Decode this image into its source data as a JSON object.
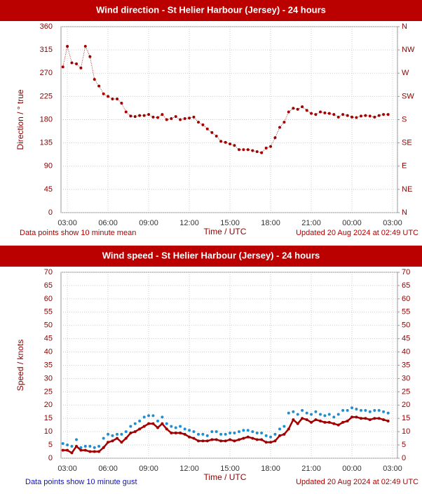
{
  "chart_data": [
    {
      "type": "line",
      "title": "Wind direction - St Helier Harbour (Jersey) - 24 hours",
      "y_label": "Direction / ° true",
      "x_label": "Time / UTC",
      "note": "Data points show 10 minute mean",
      "updated": "Updated 20 Aug 2024 at 02:49 UTC",
      "x": [
        2.67,
        3,
        3.33,
        3.67,
        4,
        4.33,
        4.67,
        5,
        5.33,
        5.67,
        6,
        6.33,
        6.67,
        7,
        7.33,
        7.67,
        8,
        8.33,
        8.67,
        9,
        9.33,
        9.67,
        10,
        10.33,
        10.67,
        11,
        11.33,
        11.67,
        12,
        12.33,
        12.67,
        13,
        13.33,
        13.67,
        14,
        14.33,
        14.67,
        15,
        15.33,
        15.67,
        16,
        16.33,
        16.67,
        17,
        17.33,
        17.67,
        18,
        18.33,
        18.67,
        19,
        19.33,
        19.67,
        20,
        20.33,
        20.67,
        21,
        21.33,
        21.67,
        22,
        22.33,
        22.67,
        23,
        23.33,
        23.67,
        24,
        24.33,
        24.67,
        25,
        25.33,
        25.67,
        26,
        26.33,
        26.67
      ],
      "values": [
        282,
        322,
        290,
        288,
        280,
        322,
        302,
        258,
        245,
        230,
        225,
        220,
        220,
        212,
        195,
        187,
        186,
        188,
        188,
        190,
        185,
        184,
        190,
        180,
        182,
        186,
        180,
        182,
        183,
        185,
        175,
        170,
        162,
        155,
        148,
        138,
        136,
        133,
        130,
        122,
        122,
        122,
        120,
        118,
        116,
        125,
        128,
        145,
        165,
        175,
        195,
        202,
        200,
        205,
        198,
        192,
        190,
        195,
        193,
        192,
        190,
        185,
        190,
        188,
        185,
        184,
        187,
        188,
        187,
        185,
        188,
        190,
        190
      ],
      "color": "#a00000",
      "line_style": "dotted",
      "xlim": [
        2.53,
        27.36
      ],
      "xticks": [
        {
          "value": 3,
          "label": "03:00"
        },
        {
          "value": 6,
          "label": "06:00"
        },
        {
          "value": 9,
          "label": "09:00"
        },
        {
          "value": 12,
          "label": "12:00"
        },
        {
          "value": 15,
          "label": "15:00"
        },
        {
          "value": 18,
          "label": "18:00"
        },
        {
          "value": 21,
          "label": "21:00"
        },
        {
          "value": 24,
          "label": "00:00"
        },
        {
          "value": 27,
          "label": "03:00"
        }
      ],
      "ylim": [
        0,
        360
      ],
      "yticks": [
        0,
        45,
        90,
        135,
        180,
        225,
        270,
        315,
        360
      ],
      "y2lim": [
        0,
        360
      ],
      "y2ticks": [
        {
          "value": 0,
          "label": "N"
        },
        {
          "value": 45,
          "label": "NE"
        },
        {
          "value": 90,
          "label": "E"
        },
        {
          "value": 135,
          "label": "SE"
        },
        {
          "value": 180,
          "label": "S"
        },
        {
          "value": 225,
          "label": "SW"
        },
        {
          "value": 270,
          "label": "W"
        },
        {
          "value": 315,
          "label": "NW"
        },
        {
          "value": 360,
          "label": "N"
        }
      ],
      "grid": true
    },
    {
      "type": "line",
      "title": "Wind speed - St Helier Harbour (Jersey) - 24 hours",
      "y_label": "Speed / knots",
      "x_label": "Time / UTC",
      "note": "Data points show 10 minute gust",
      "updated": "Updated 20 Aug 2024 at 02:49 UTC",
      "x": [
        2.67,
        3,
        3.33,
        3.67,
        4,
        4.33,
        4.67,
        5,
        5.33,
        5.67,
        6,
        6.33,
        6.67,
        7,
        7.33,
        7.67,
        8,
        8.33,
        8.67,
        9,
        9.33,
        9.67,
        10,
        10.33,
        10.67,
        11,
        11.33,
        11.67,
        12,
        12.33,
        12.67,
        13,
        13.33,
        13.67,
        14,
        14.33,
        14.67,
        15,
        15.33,
        15.67,
        16,
        16.33,
        16.67,
        17,
        17.33,
        17.67,
        18,
        18.33,
        18.67,
        19,
        19.33,
        19.67,
        20,
        20.33,
        20.67,
        21,
        21.33,
        21.67,
        22,
        22.33,
        22.67,
        23,
        23.33,
        23.67,
        24,
        24.33,
        24.67,
        25,
        25.33,
        25.67,
        26,
        26.33,
        26.67
      ],
      "series": [
        {
          "color": "#1e8fd0",
          "line_style": "none",
          "values": [
            5.5,
            5,
            4.5,
            7,
            4,
            4.5,
            4.5,
            4,
            4.5,
            7.5,
            9,
            8.5,
            9,
            9,
            10,
            12,
            13,
            14,
            15.5,
            16,
            16,
            14,
            15.5,
            13,
            12,
            11.5,
            12,
            11,
            10.5,
            10,
            9,
            9,
            8.5,
            10,
            10,
            9,
            9,
            9.5,
            9.5,
            10,
            10.5,
            10.5,
            10,
            9.5,
            9.5,
            8.5,
            8,
            9,
            11,
            12,
            17,
            17.5,
            16.5,
            18,
            17,
            16.5,
            17.5,
            16.5,
            16,
            16.5,
            15.5,
            16.5,
            18,
            18,
            19,
            18.5,
            18,
            18,
            17.5,
            18,
            18,
            17.5,
            17
          ]
        },
        {
          "color": "#a00000",
          "line_style": "solid",
          "values": [
            3,
            3,
            2,
            4.5,
            3,
            3,
            2.5,
            2.5,
            2.5,
            4,
            6,
            6.5,
            7.5,
            6,
            7.5,
            9.5,
            10,
            11,
            12,
            13,
            13,
            11.5,
            13,
            11,
            9.5,
            9.5,
            9.5,
            9,
            8,
            7.5,
            6.5,
            6.5,
            6.5,
            7,
            7,
            6.5,
            6.5,
            7,
            6.5,
            7,
            7.5,
            8,
            7.5,
            7,
            7,
            6,
            6,
            6.5,
            8.5,
            9,
            11,
            14.5,
            13,
            15,
            14.5,
            13.5,
            14.5,
            14,
            13.5,
            13.5,
            13,
            12.5,
            13.5,
            14,
            15.5,
            15.5,
            15,
            15,
            14.5,
            15,
            15,
            14.5,
            14
          ]
        }
      ],
      "xlim": [
        2.53,
        27.36
      ],
      "xticks": [
        {
          "value": 3,
          "label": "03:00"
        },
        {
          "value": 6,
          "label": "06:00"
        },
        {
          "value": 9,
          "label": "09:00"
        },
        {
          "value": 12,
          "label": "12:00"
        },
        {
          "value": 15,
          "label": "15:00"
        },
        {
          "value": 18,
          "label": "18:00"
        },
        {
          "value": 21,
          "label": "21:00"
        },
        {
          "value": 24,
          "label": "00:00"
        },
        {
          "value": 27,
          "label": "03:00"
        }
      ],
      "ylim": [
        0,
        70
      ],
      "yticks": [
        0,
        5,
        10,
        15,
        20,
        25,
        30,
        35,
        40,
        45,
        50,
        55,
        60,
        65,
        70
      ],
      "y2lim": [
        0,
        70
      ],
      "y2ticks": [
        0,
        5,
        10,
        15,
        20,
        25,
        30,
        35,
        40,
        45,
        50,
        55,
        60,
        65,
        70
      ],
      "grid": true
    }
  ]
}
